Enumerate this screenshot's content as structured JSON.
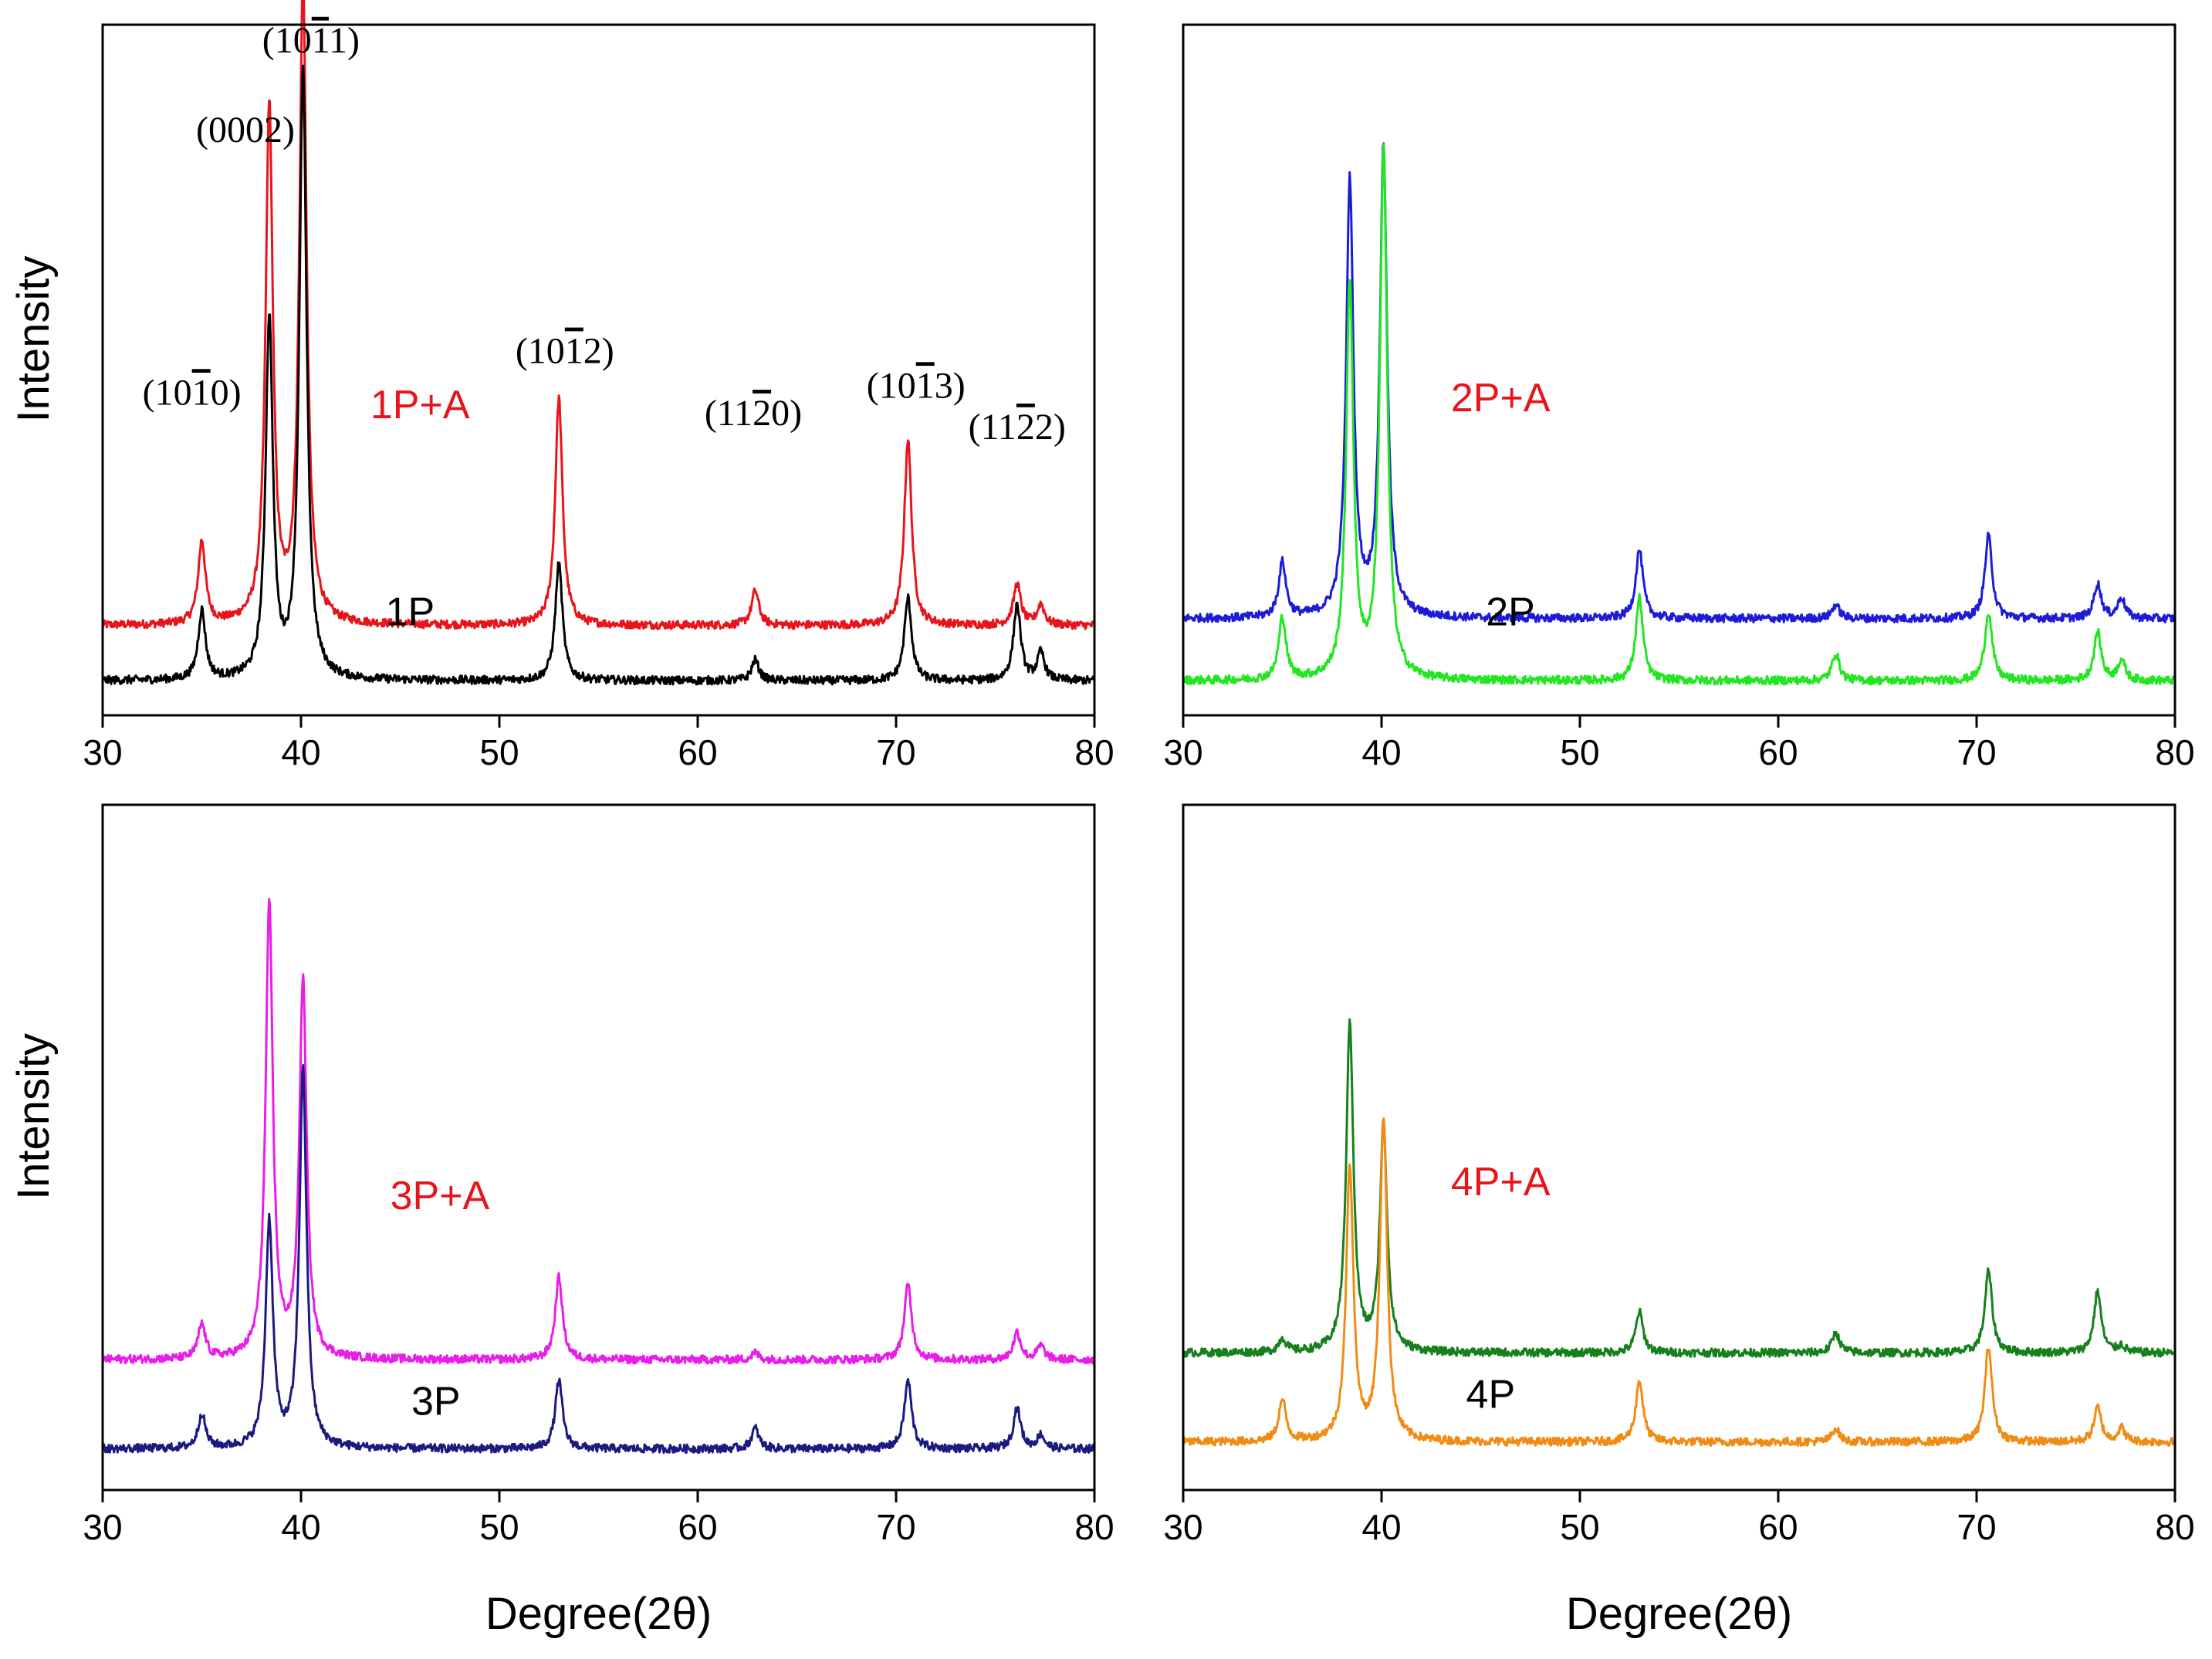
{
  "chart_data": [
    {
      "type": "line",
      "panel": "top-left",
      "xlabel": "",
      "ylabel": "Intensity",
      "xlim": [
        30,
        80
      ],
      "xticks": [
        "30",
        "40",
        "50",
        "60",
        "70",
        "80"
      ],
      "series": [
        {
          "name": "1P+A",
          "label": "1P+A",
          "label_color": "#e8141c",
          "color": "#e8141c",
          "baseline": 0.13,
          "label_x": 46,
          "label_y": 0.43,
          "peaks": [
            [
              35.0,
              0.12
            ],
            [
              38.4,
              0.75
            ],
            [
              40.1,
              0.93
            ],
            [
              53.0,
              0.33
            ],
            [
              62.9,
              0.05
            ],
            [
              70.6,
              0.27
            ],
            [
              76.1,
              0.06
            ],
            [
              77.3,
              0.03
            ]
          ]
        },
        {
          "name": "1P",
          "label": "1P",
          "label_color": "#000000",
          "color": "#000000",
          "baseline": 0.05,
          "label_x": 45.5,
          "label_y": 0.13,
          "peaks": [
            [
              35.0,
              0.1
            ],
            [
              38.4,
              0.52
            ],
            [
              40.1,
              0.88
            ],
            [
              53.0,
              0.17
            ],
            [
              62.9,
              0.03
            ],
            [
              70.6,
              0.12
            ],
            [
              76.1,
              0.11
            ],
            [
              77.3,
              0.04
            ]
          ]
        }
      ],
      "annotations": [
        {
          "text": "(10",
          "bar": "1",
          "tail": "0)",
          "x": 34.5,
          "y": 0.45
        },
        {
          "text": "(0002)",
          "bar": "",
          "tail": "",
          "x": 37.2,
          "y": 0.83
        },
        {
          "text": "(10",
          "bar": "1",
          "tail": "1)",
          "x": 40.5,
          "y": 0.96
        },
        {
          "text": "(10",
          "bar": "1",
          "tail": "2)",
          "x": 53.3,
          "y": 0.51
        },
        {
          "text": "(11",
          "bar": "2",
          "tail": "0)",
          "x": 62.8,
          "y": 0.42
        },
        {
          "text": "(10",
          "bar": "1",
          "tail": "3)",
          "x": 71.0,
          "y": 0.46
        },
        {
          "text": "(11",
          "bar": "2",
          "tail": "2)",
          "x": 76.1,
          "y": 0.4
        }
      ]
    },
    {
      "type": "line",
      "panel": "top-right",
      "xlabel": "",
      "ylabel": "",
      "xlim": [
        30,
        80
      ],
      "xticks": [
        "30",
        "40",
        "50",
        "60",
        "70",
        "80"
      ],
      "series": [
        {
          "name": "2P+A",
          "label": "2P+A",
          "label_color": "#e8141c",
          "color": "#1c1cd8",
          "baseline": 0.14,
          "label_x": 46,
          "label_y": 0.44,
          "peaks": [
            [
              35.0,
              0.08
            ],
            [
              38.4,
              0.63
            ],
            [
              40.1,
              0.68
            ],
            [
              53.0,
              0.1
            ],
            [
              62.9,
              0.02
            ],
            [
              70.6,
              0.12
            ],
            [
              76.1,
              0.05
            ],
            [
              77.3,
              0.03
            ]
          ]
        },
        {
          "name": "2P",
          "label": "2P",
          "label_color": "#000000",
          "color": "#22e622",
          "baseline": 0.05,
          "label_x": 46.5,
          "label_y": 0.13,
          "peaks": [
            [
              35.0,
              0.09
            ],
            [
              38.4,
              0.57
            ],
            [
              40.1,
              0.77
            ],
            [
              53.0,
              0.12
            ],
            [
              62.9,
              0.04
            ],
            [
              70.6,
              0.1
            ],
            [
              76.1,
              0.07
            ],
            [
              77.3,
              0.03
            ]
          ]
        }
      ],
      "annotations": []
    },
    {
      "type": "line",
      "panel": "bottom-left",
      "xlabel": "Degree(2θ)",
      "ylabel": "Intensity",
      "xlim": [
        30,
        80
      ],
      "xticks": [
        "30",
        "40",
        "50",
        "60",
        "70",
        "80"
      ],
      "series": [
        {
          "name": "3P+A",
          "label": "3P+A",
          "label_color": "#e8141c",
          "color": "#e81ee8",
          "baseline": 0.19,
          "label_x": 47,
          "label_y": 0.41,
          "peaks": [
            [
              35.0,
              0.05
            ],
            [
              38.4,
              0.66
            ],
            [
              40.1,
              0.55
            ],
            [
              53.0,
              0.12
            ],
            [
              62.9,
              0.01
            ],
            [
              70.6,
              0.11
            ],
            [
              76.1,
              0.04
            ],
            [
              77.3,
              0.02
            ]
          ]
        },
        {
          "name": "3P",
          "label": "3P",
          "label_color": "#000000",
          "color": "#1a1a80",
          "baseline": 0.06,
          "label_x": 46.8,
          "label_y": 0.11,
          "peaks": [
            [
              35.0,
              0.05
            ],
            [
              38.4,
              0.33
            ],
            [
              40.1,
              0.55
            ],
            [
              53.0,
              0.1
            ],
            [
              62.9,
              0.03
            ],
            [
              70.6,
              0.1
            ],
            [
              76.1,
              0.06
            ],
            [
              77.3,
              0.02
            ]
          ]
        }
      ],
      "annotations": []
    },
    {
      "type": "line",
      "panel": "bottom-right",
      "xlabel": "Degree(2θ)",
      "ylabel": "",
      "xlim": [
        30,
        80
      ],
      "xticks": [
        "30",
        "40",
        "50",
        "60",
        "70",
        "80"
      ],
      "series": [
        {
          "name": "4P+A",
          "label": "4P+A",
          "label_color": "#e8141c",
          "color": "#16801c",
          "baseline": 0.2,
          "label_x": 46,
          "label_y": 0.43,
          "peaks": [
            [
              35.0,
              0.02
            ],
            [
              38.4,
              0.48
            ],
            [
              40.1,
              0.33
            ],
            [
              53.0,
              0.06
            ],
            [
              62.9,
              0.03
            ],
            [
              70.6,
              0.12
            ],
            [
              76.1,
              0.09
            ],
            [
              77.3,
              0.01
            ]
          ]
        },
        {
          "name": "4P",
          "label": "4P",
          "label_color": "#000000",
          "color": "#f08c14",
          "baseline": 0.07,
          "label_x": 45.5,
          "label_y": 0.12,
          "peaks": [
            [
              35.0,
              0.06
            ],
            [
              38.4,
              0.4
            ],
            [
              40.1,
              0.47
            ],
            [
              53.0,
              0.09
            ],
            [
              62.9,
              0.02
            ],
            [
              70.6,
              0.14
            ],
            [
              76.1,
              0.05
            ],
            [
              77.3,
              0.02
            ]
          ]
        }
      ],
      "annotations": []
    }
  ]
}
